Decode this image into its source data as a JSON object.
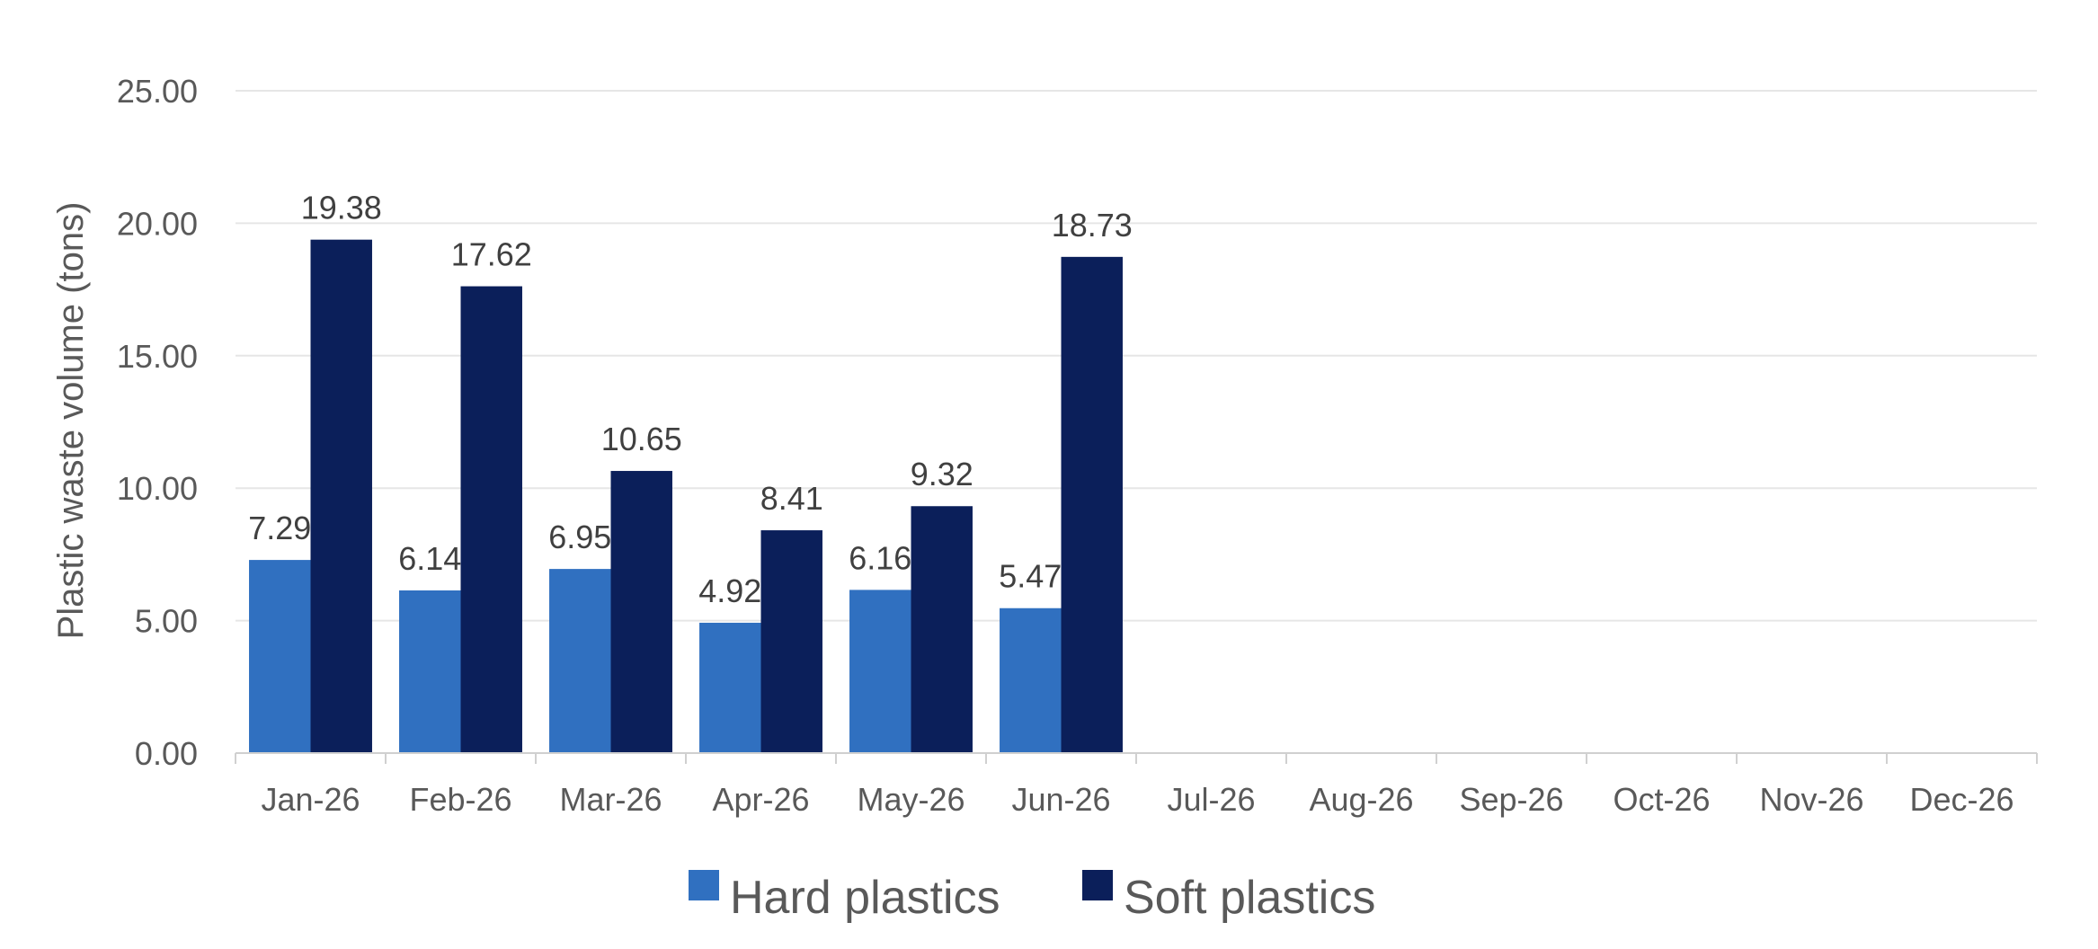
{
  "chart_data": {
    "type": "bar",
    "title": "",
    "xlabel": "",
    "ylabel": "Plastic waste volume (tons)",
    "ylim": [
      0,
      25
    ],
    "y_ticks": [
      "0.00",
      "5.00",
      "10.00",
      "15.00",
      "20.00",
      "25.00"
    ],
    "grid": true,
    "legend_position": "bottom",
    "categories": [
      "Jan-26",
      "Feb-26",
      "Mar-26",
      "Apr-26",
      "May-26",
      "Jun-26",
      "Jul-26",
      "Aug-26",
      "Sep-26",
      "Oct-26",
      "Nov-26",
      "Dec-26"
    ],
    "series": [
      {
        "name": "Hard plastics",
        "color": "#3070C0",
        "values": [
          7.29,
          6.14,
          6.95,
          4.92,
          6.16,
          5.47,
          null,
          null,
          null,
          null,
          null,
          null
        ],
        "labels": [
          "7.29",
          "6.14",
          "6.95",
          "4.92",
          "6.16",
          "5.47",
          "",
          "",
          "",
          "",
          "",
          ""
        ]
      },
      {
        "name": "Soft plastics",
        "color": "#0B1F5A",
        "values": [
          19.38,
          17.62,
          10.65,
          8.41,
          9.32,
          18.73,
          null,
          null,
          null,
          null,
          null,
          null
        ],
        "labels": [
          "19.38",
          "17.62",
          "10.65",
          "8.41",
          "9.32",
          "18.73",
          "",
          "",
          "",
          "",
          "",
          ""
        ]
      }
    ]
  }
}
